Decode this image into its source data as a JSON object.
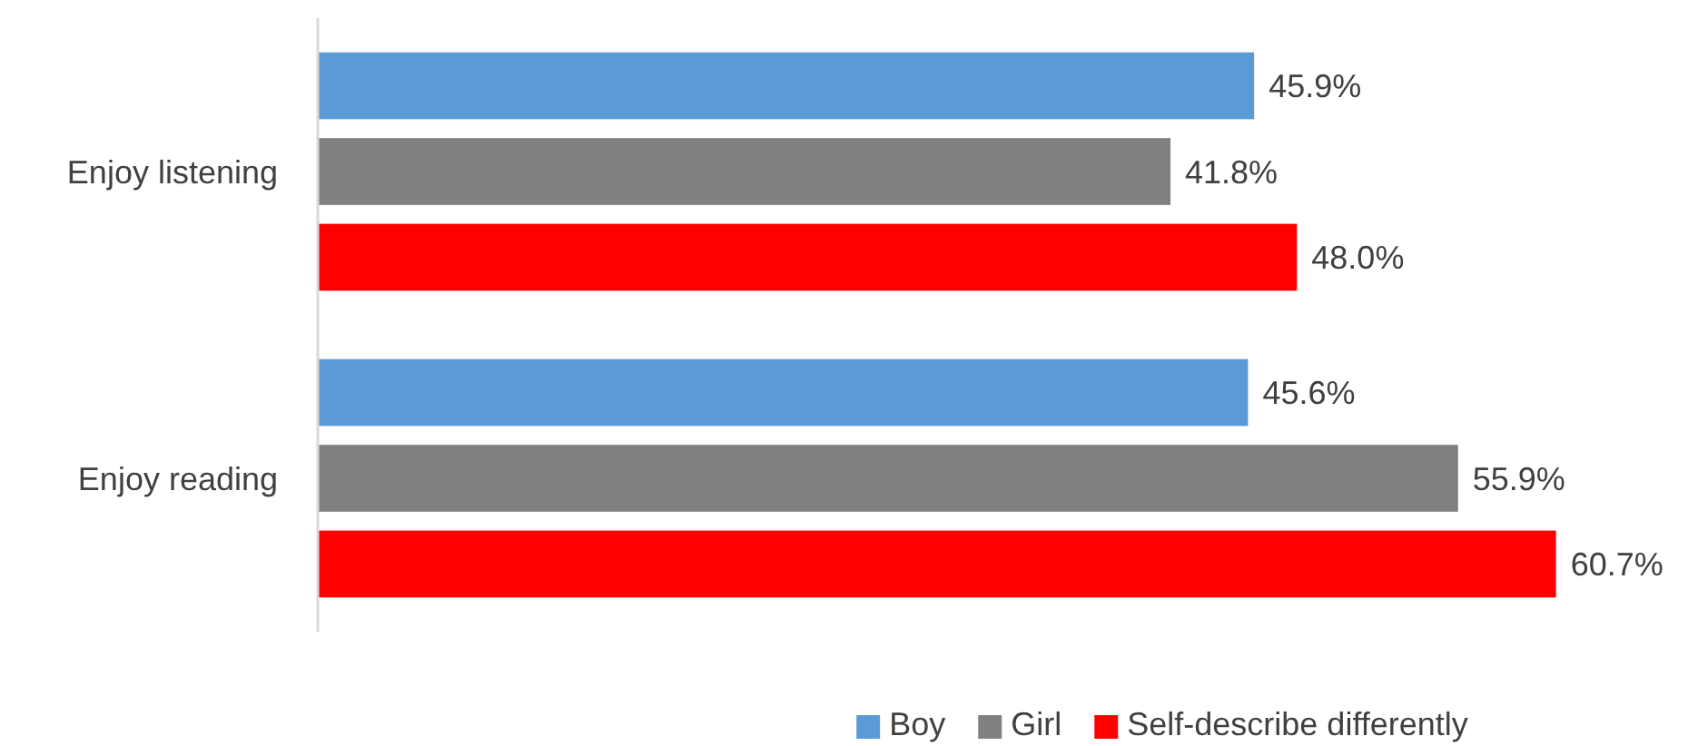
{
  "chart_data": {
    "type": "bar",
    "orientation": "horizontal",
    "categories": [
      "Enjoy listening",
      "Enjoy reading"
    ],
    "series": [
      {
        "name": "Boy",
        "color": "#5b9bd5",
        "values": [
          45.9,
          45.6
        ],
        "value_labels": [
          "45.9%",
          "45.6%"
        ]
      },
      {
        "name": "Girl",
        "color": "#808080",
        "values": [
          41.8,
          55.9
        ],
        "value_labels": [
          "41.8%",
          "55.9%"
        ]
      },
      {
        "name": "Self-describe differently",
        "color": "#ff0000",
        "values": [
          48.0,
          60.7
        ],
        "value_labels": [
          "48.0%",
          "60.7%"
        ]
      }
    ],
    "legend": "bottom"
  }
}
